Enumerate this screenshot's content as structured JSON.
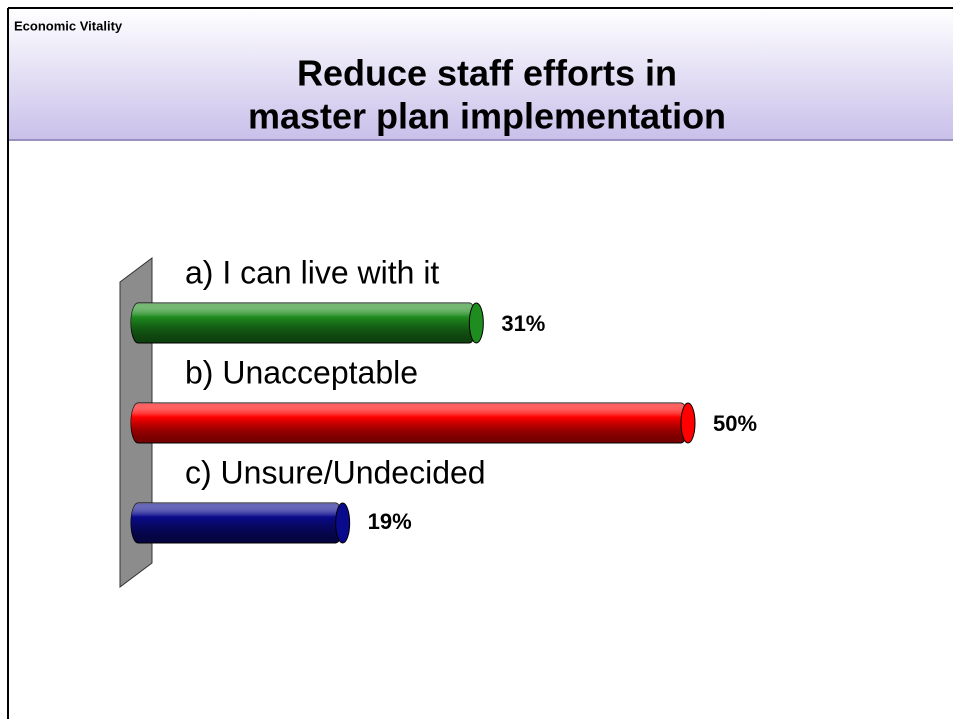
{
  "header": "Economic Vitality",
  "chart_data": {
    "type": "bar",
    "title": [
      "Reduce staff efforts in",
      "master plan implementation"
    ],
    "categories": [
      "a)  I can live with it",
      "b)  Unacceptable",
      "c)  Unsure/Undecided"
    ],
    "values": [
      31,
      50,
      19
    ],
    "value_labels": [
      "31%",
      "50%",
      "19%"
    ],
    "colors": [
      "#1e8c1e",
      "#ff0000",
      "#0a0a8c"
    ]
  }
}
